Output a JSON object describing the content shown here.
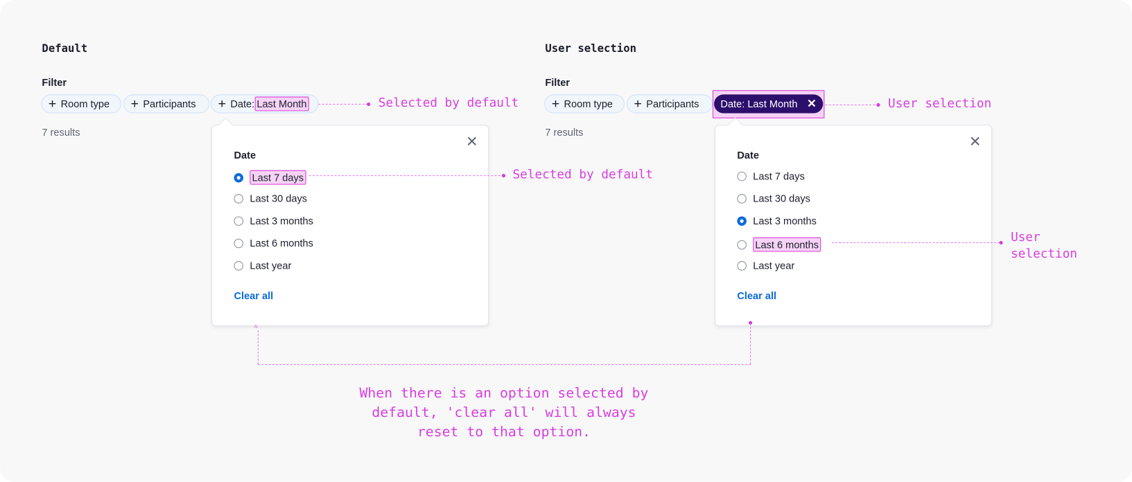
{
  "colors": {
    "annotation": "#d83ee0",
    "accent": "#0b6bdc",
    "chip_active": "#2c0f6b",
    "highlight": "#f6d3f6"
  },
  "default": {
    "title": "Default",
    "filter_label": "Filter",
    "chips": [
      {
        "label": "Room type",
        "icon": "plus-icon"
      },
      {
        "label": "Participants",
        "icon": "plus-icon"
      }
    ],
    "date_chip": {
      "prefix": "Date:",
      "value": "Last Month",
      "icon": "plus-icon"
    },
    "results": "7 results",
    "popup": {
      "title": "Date",
      "options": [
        "Last 7 days",
        "Last 30 days",
        "Last 3 months",
        "Last 6 months",
        "Last year"
      ],
      "selected": "Last 7 days",
      "clear_label": "Clear all",
      "close_icon": "close-icon"
    },
    "chip_note": "Selected by default",
    "option_note": "Selected by default"
  },
  "user": {
    "title": "User selection",
    "filter_label": "Filter",
    "chips": [
      {
        "label": "Room type",
        "icon": "plus-icon"
      },
      {
        "label": "Participants",
        "icon": "plus-icon"
      }
    ],
    "date_chip": {
      "label": "Date: Last Month",
      "icon": "close-icon"
    },
    "results": "7 results",
    "popup": {
      "title": "Date",
      "options": [
        "Last 7 days",
        "Last 30 days",
        "Last 3 months",
        "Last 6 months",
        "Last year"
      ],
      "selected": "Last 3 months",
      "highlighted": "Last 6 months",
      "clear_label": "Clear all",
      "close_icon": "close-icon"
    },
    "chip_note": "User selection",
    "option_note_line1": "User",
    "option_note_line2": "selection"
  },
  "footnote": {
    "line1": "When there is an option selected by",
    "line2": "default, 'clear all' will always",
    "line3": "reset to that option."
  }
}
